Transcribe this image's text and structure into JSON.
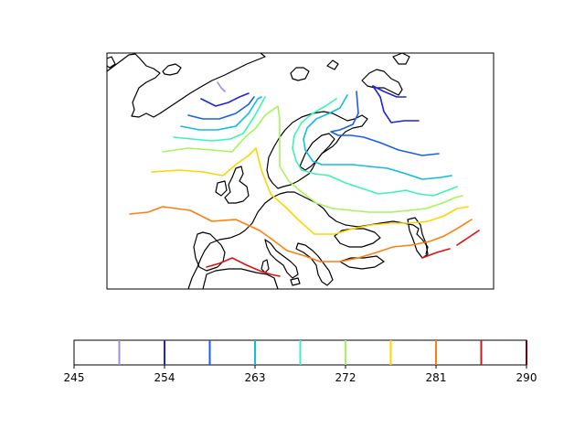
{
  "colorbar": {
    "ticks": [
      "245",
      "254",
      "263",
      "272",
      "281",
      "290"
    ],
    "range": [
      245,
      290
    ],
    "level_values": [
      249.5,
      254,
      258.5,
      263,
      267.5,
      272,
      276.5,
      281,
      285.5,
      290
    ],
    "level_colors": [
      "#9a90e6",
      "#2222dd",
      "#1a5fea",
      "#10bce0",
      "#3cf5b0",
      "#a4f55a",
      "#ffd500",
      "#ff7f0e",
      "#e01010",
      "#800000"
    ]
  },
  "map": {
    "type": "contour",
    "projection": "lat-lon",
    "region": "Europe",
    "coastline_color": "#000000"
  }
}
